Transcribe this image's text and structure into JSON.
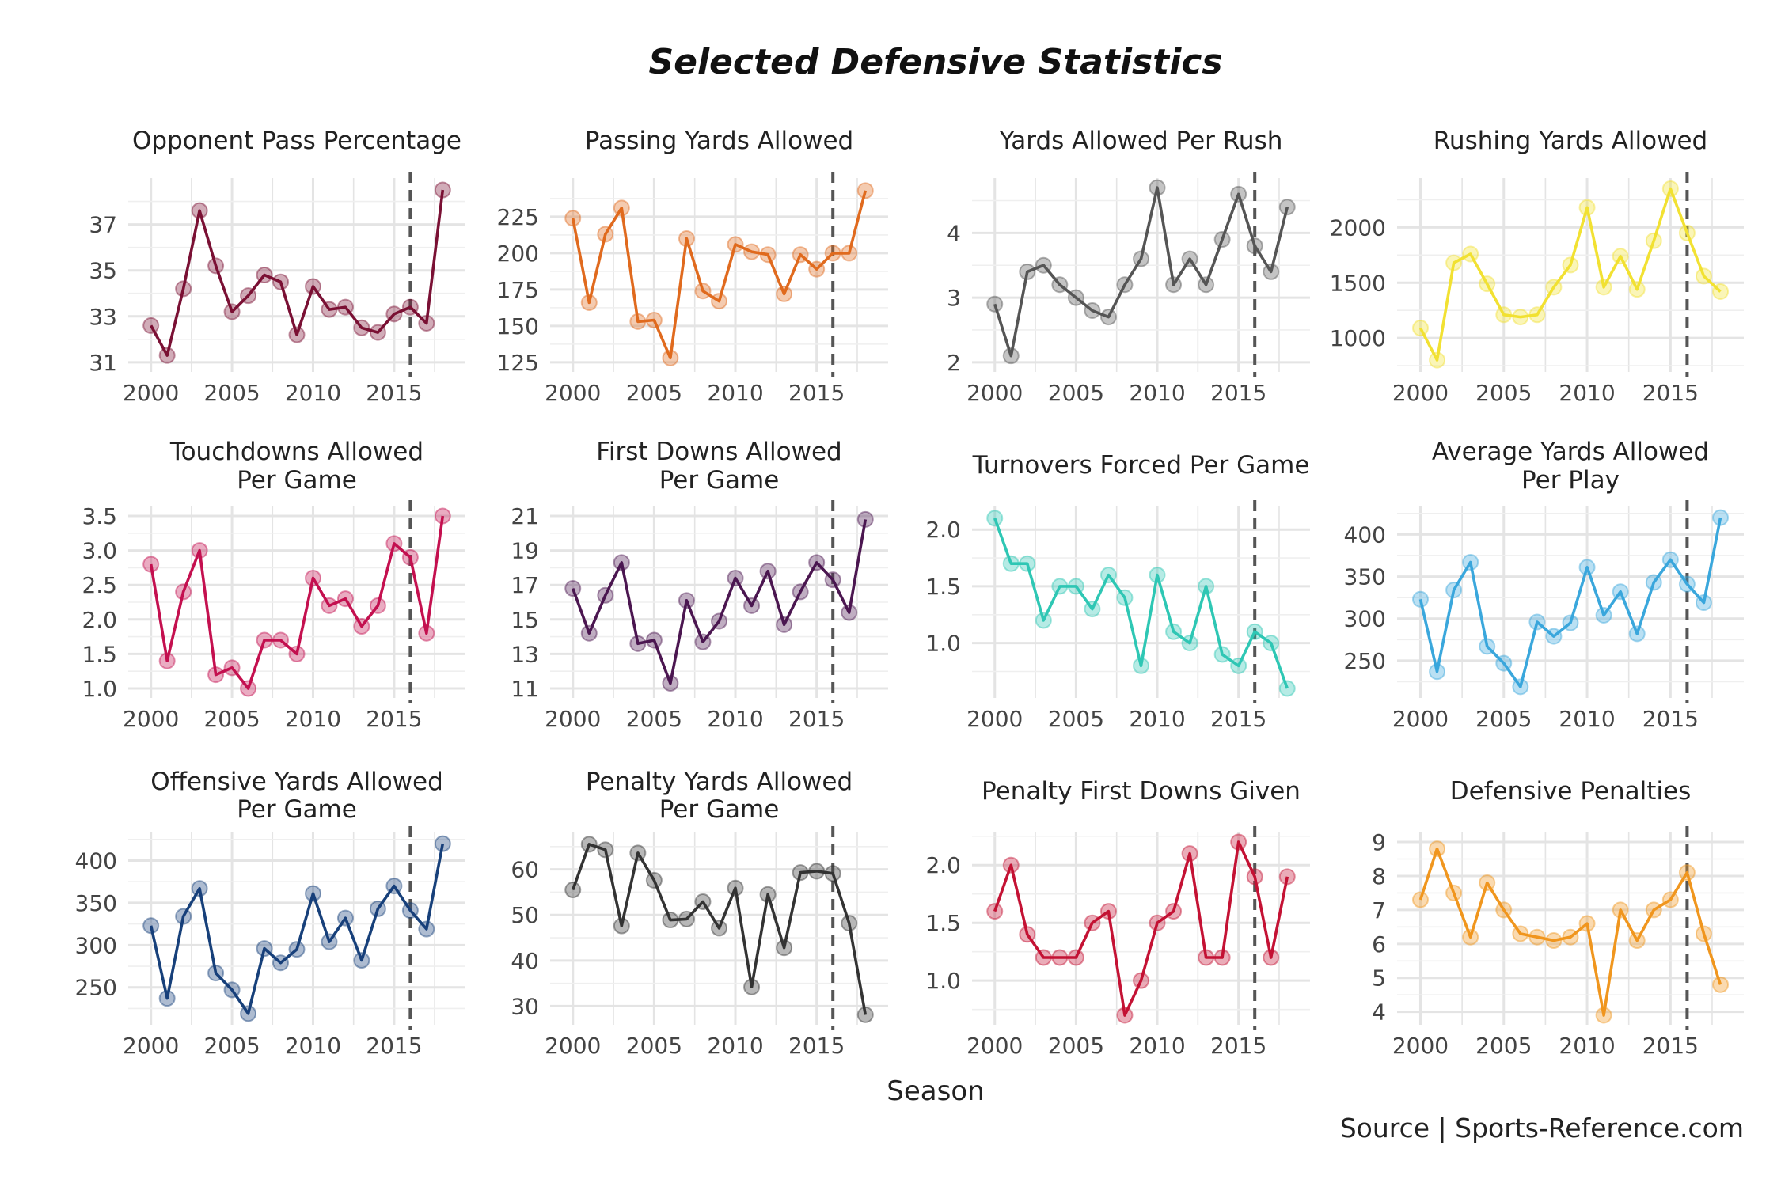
{
  "title": "Selected Defensive Statistics",
  "xlabel": "Season",
  "source": "Source | Sports-Reference.com",
  "chart_data": [
    {
      "type": "line",
      "title": "Opponent Pass Percentage",
      "color": "#7a1034",
      "x": [
        2000,
        2001,
        2002,
        2003,
        2004,
        2005,
        2006,
        2007,
        2008,
        2009,
        2010,
        2011,
        2012,
        2013,
        2014,
        2015,
        2016,
        2017,
        2018
      ],
      "values": [
        32.6,
        31.3,
        34.2,
        37.6,
        35.2,
        33.2,
        33.9,
        34.8,
        34.5,
        32.2,
        34.3,
        33.3,
        33.4,
        32.5,
        32.3,
        33.1,
        33.4,
        32.7,
        38.5
      ],
      "ylim": [
        31,
        38.6
      ],
      "yticks": [
        31,
        33,
        35,
        37
      ],
      "xticks": [
        2000,
        2005,
        2010,
        2015
      ],
      "vline": 2016
    },
    {
      "type": "line",
      "title": "Passing Yards Allowed",
      "color": "#e06a1e",
      "x": [
        2000,
        2001,
        2002,
        2003,
        2004,
        2005,
        2006,
        2007,
        2008,
        2009,
        2010,
        2011,
        2012,
        2013,
        2014,
        2015,
        2016,
        2017,
        2018
      ],
      "values": [
        224,
        166,
        213,
        231,
        153,
        154,
        128,
        210,
        174,
        167,
        206,
        201,
        199,
        172,
        199,
        189,
        200,
        200,
        243
      ],
      "ylim": [
        125,
        245
      ],
      "yticks": [
        125,
        150,
        175,
        200,
        225
      ],
      "xticks": [
        2000,
        2005,
        2010,
        2015
      ],
      "vline": 2016
    },
    {
      "type": "line",
      "title": "Yards Allowed Per Rush",
      "color": "#555555",
      "x": [
        2000,
        2001,
        2002,
        2003,
        2004,
        2005,
        2006,
        2007,
        2008,
        2009,
        2010,
        2011,
        2012,
        2013,
        2014,
        2015,
        2016,
        2017,
        2018
      ],
      "values": [
        2.9,
        2.1,
        3.4,
        3.5,
        3.2,
        3.0,
        2.8,
        2.7,
        3.2,
        3.6,
        4.7,
        3.2,
        3.6,
        3.2,
        3.9,
        4.6,
        3.8,
        3.4,
        4.4
      ],
      "ylim": [
        2,
        4.7
      ],
      "yticks": [
        2,
        3,
        4
      ],
      "xticks": [
        2000,
        2005,
        2010,
        2015
      ],
      "vline": 2016
    },
    {
      "type": "line",
      "title": "Rushing Yards Allowed",
      "color": "#f2e132",
      "x": [
        2000,
        2001,
        2002,
        2003,
        2004,
        2005,
        2006,
        2007,
        2008,
        2009,
        2010,
        2011,
        2012,
        2013,
        2014,
        2015,
        2016,
        2017,
        2018
      ],
      "values": [
        1090,
        800,
        1680,
        1760,
        1490,
        1210,
        1190,
        1210,
        1460,
        1660,
        2180,
        1460,
        1740,
        1440,
        1880,
        2350,
        1950,
        1560,
        1420
      ],
      "ylim": [
        780,
        2360
      ],
      "yticks": [
        1000,
        1500,
        2000
      ],
      "xticks": [
        2000,
        2005,
        2010,
        2015
      ],
      "vline": 2016
    },
    {
      "type": "line",
      "title": "Touchdowns Allowed\nPer Game",
      "color": "#c4104f",
      "x": [
        2000,
        2001,
        2002,
        2003,
        2004,
        2005,
        2006,
        2007,
        2008,
        2009,
        2010,
        2011,
        2012,
        2013,
        2014,
        2015,
        2016,
        2017,
        2018
      ],
      "values": [
        2.8,
        1.4,
        2.4,
        3.0,
        1.2,
        1.3,
        1.0,
        1.7,
        1.7,
        1.5,
        2.6,
        2.2,
        2.3,
        1.9,
        2.2,
        3.1,
        2.9,
        1.8,
        3.5
      ],
      "ylim": [
        1.0,
        3.5
      ],
      "yticks": [
        1.0,
        1.5,
        2.0,
        2.5,
        3.0,
        3.5
      ],
      "xticks": [
        2000,
        2005,
        2010,
        2015
      ],
      "vline": 2016
    },
    {
      "type": "line",
      "title": "First Downs Allowed\nPer Game",
      "color": "#4b1650",
      "x": [
        2000,
        2001,
        2002,
        2003,
        2004,
        2005,
        2006,
        2007,
        2008,
        2009,
        2010,
        2011,
        2012,
        2013,
        2014,
        2015,
        2016,
        2017,
        2018
      ],
      "values": [
        16.8,
        14.2,
        16.4,
        18.3,
        13.6,
        13.8,
        11.3,
        16.1,
        13.7,
        14.9,
        17.4,
        15.8,
        17.8,
        14.7,
        16.6,
        18.3,
        17.3,
        15.4,
        20.8
      ],
      "ylim": [
        11,
        21
      ],
      "yticks": [
        11,
        13,
        15,
        17,
        19,
        21
      ],
      "xticks": [
        2000,
        2005,
        2010,
        2015
      ],
      "vline": 2016
    },
    {
      "type": "line",
      "title": "Turnovers Forced Per Game",
      "color": "#2ec7b4",
      "x": [
        2000,
        2001,
        2002,
        2003,
        2004,
        2005,
        2006,
        2007,
        2008,
        2009,
        2010,
        2011,
        2012,
        2013,
        2014,
        2015,
        2016,
        2017,
        2018
      ],
      "values": [
        2.1,
        1.7,
        1.7,
        1.2,
        1.5,
        1.5,
        1.3,
        1.6,
        1.4,
        0.8,
        1.6,
        1.1,
        1.0,
        1.5,
        0.9,
        0.8,
        1.1,
        1.0,
        0.6
      ],
      "ylim": [
        0.6,
        2.12
      ],
      "yticks": [
        1.0,
        1.5,
        2.0
      ],
      "xticks": [
        2000,
        2005,
        2010,
        2015
      ],
      "vline": 2016
    },
    {
      "type": "line",
      "title": "Average Yards Allowed\nPer Play",
      "color": "#3aa7dc",
      "x": [
        2000,
        2001,
        2002,
        2003,
        2004,
        2005,
        2006,
        2007,
        2008,
        2009,
        2010,
        2011,
        2012,
        2013,
        2014,
        2015,
        2016,
        2017,
        2018
      ],
      "values": [
        323,
        237,
        334,
        367,
        267,
        247,
        219,
        296,
        279,
        295,
        361,
        304,
        332,
        282,
        343,
        370,
        341,
        319,
        420
      ],
      "ylim": [
        217,
        422
      ],
      "yticks": [
        250,
        300,
        350,
        400
      ],
      "xticks": [
        2000,
        2005,
        2010,
        2015
      ],
      "vline": 2016
    },
    {
      "type": "line",
      "title": "Offensive Yards Allowed\nPer Game",
      "color": "#17407a",
      "x": [
        2000,
        2001,
        2002,
        2003,
        2004,
        2005,
        2006,
        2007,
        2008,
        2009,
        2010,
        2011,
        2012,
        2013,
        2014,
        2015,
        2016,
        2017,
        2018
      ],
      "values": [
        323,
        237,
        334,
        367,
        267,
        247,
        219,
        296,
        279,
        295,
        361,
        304,
        332,
        282,
        343,
        370,
        341,
        319,
        420
      ],
      "ylim": [
        217,
        422
      ],
      "yticks": [
        250,
        300,
        350,
        400
      ],
      "xticks": [
        2000,
        2005,
        2010,
        2015
      ],
      "vline": 2016
    },
    {
      "type": "line",
      "title": "Penalty Yards Allowed\nPer Game",
      "color": "#333333",
      "x": [
        2000,
        2001,
        2002,
        2003,
        2004,
        2005,
        2006,
        2007,
        2008,
        2009,
        2010,
        2011,
        2012,
        2013,
        2014,
        2015,
        2016,
        2017,
        2018
      ],
      "values": [
        55.5,
        65.5,
        64.3,
        47.6,
        63.6,
        57.6,
        48.9,
        49.1,
        52.9,
        47.1,
        55.9,
        34.2,
        54.5,
        42.8,
        59.3,
        59.6,
        59.1,
        48.2,
        28.1
      ],
      "ylim": [
        28,
        66
      ],
      "yticks": [
        30,
        40,
        50,
        60
      ],
      "xticks": [
        2000,
        2005,
        2010,
        2015
      ],
      "vline": 2016
    },
    {
      "type": "line",
      "title": "Penalty First Downs Given",
      "color": "#c41234",
      "x": [
        2000,
        2001,
        2002,
        2003,
        2004,
        2005,
        2006,
        2007,
        2008,
        2009,
        2010,
        2011,
        2012,
        2013,
        2014,
        2015,
        2016,
        2017,
        2018
      ],
      "values": [
        1.6,
        2.0,
        1.4,
        1.2,
        1.2,
        1.2,
        1.5,
        1.6,
        0.7,
        1.0,
        1.5,
        1.6,
        2.1,
        1.2,
        1.2,
        2.2,
        1.9,
        1.2,
        1.9
      ],
      "ylim": [
        0.7,
        2.2
      ],
      "yticks": [
        1.0,
        1.5,
        2.0
      ],
      "xticks": [
        2000,
        2005,
        2010,
        2015
      ],
      "vline": 2016
    },
    {
      "type": "line",
      "title": "Defensive Penalties",
      "color": "#f0961e",
      "x": [
        2000,
        2001,
        2002,
        2003,
        2004,
        2005,
        2006,
        2007,
        2008,
        2009,
        2010,
        2011,
        2012,
        2013,
        2014,
        2015,
        2016,
        2017,
        2018
      ],
      "values": [
        7.3,
        8.8,
        7.5,
        6.2,
        7.8,
        7.0,
        6.3,
        6.2,
        6.1,
        6.2,
        6.6,
        3.9,
        7.0,
        6.1,
        7.0,
        7.3,
        8.1,
        6.3,
        4.8
      ],
      "ylim": [
        3.9,
        9.0
      ],
      "yticks": [
        4,
        5,
        6,
        7,
        8,
        9
      ],
      "xticks": [
        2000,
        2005,
        2010,
        2015
      ],
      "vline": 2016
    }
  ]
}
